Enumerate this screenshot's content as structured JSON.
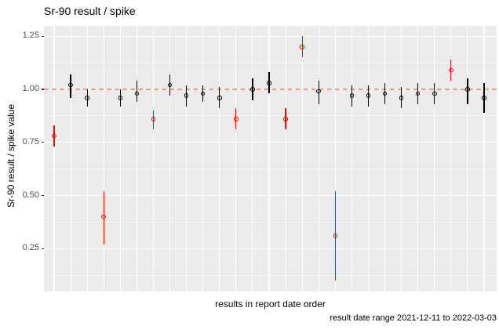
{
  "chart_data": {
    "type": "scatter",
    "subtype": "points-with-error-bars",
    "title": "Sr-90 result / spike",
    "xlabel": "results in report date order",
    "ylabel": "Sr-90 result / spike value",
    "caption": "result date range 2021-12-11 to 2022-03-03",
    "legend": "none",
    "grid": "on",
    "ylim": [
      0.05,
      1.3
    ],
    "yticks": [
      1.25,
      1.0,
      0.75,
      0.5,
      0.25
    ],
    "ytick_labels": [
      "1.25",
      "1.00",
      "0.75",
      "0.50",
      "0.25"
    ],
    "minor_gridlines_y": [
      1.125,
      0.875,
      0.625,
      0.375,
      0.125
    ],
    "reference_line": {
      "y": 1.0,
      "style": "dashed",
      "color": "#F49B7D"
    },
    "colors": {
      "panel_bg": "#EBEBEB",
      "gridline": "#FFFFFF",
      "normal": "#000000",
      "flagged": "#FF0000",
      "tick_text": "#4D4D4D",
      "refline": "#F49B7D"
    },
    "n_points": 27,
    "points": [
      {
        "index": 1,
        "y": 0.78,
        "ymin": 0.73,
        "ymax": 0.83,
        "color": "red"
      },
      {
        "index": 2,
        "y": 1.02,
        "ymin": 0.96,
        "ymax": 1.07,
        "color": "black"
      },
      {
        "index": 3,
        "y": 0.96,
        "ymin": 0.92,
        "ymax": 1.0,
        "color": "black"
      },
      {
        "index": 4,
        "y": 0.4,
        "ymin": 0.27,
        "ymax": 0.52,
        "color": "red"
      },
      {
        "index": 5,
        "y": 0.96,
        "ymin": 0.92,
        "ymax": 1.0,
        "color": "black"
      },
      {
        "index": 6,
        "y": 0.98,
        "ymin": 0.94,
        "ymax": 1.04,
        "color": "black"
      },
      {
        "index": 7,
        "y": 0.86,
        "ymin": 0.81,
        "ymax": 0.9,
        "color": "red"
      },
      {
        "index": 8,
        "y": 1.02,
        "ymin": 0.97,
        "ymax": 1.07,
        "color": "black"
      },
      {
        "index": 9,
        "y": 0.97,
        "ymin": 0.92,
        "ymax": 1.02,
        "color": "black"
      },
      {
        "index": 10,
        "y": 0.98,
        "ymin": 0.94,
        "ymax": 1.02,
        "color": "black"
      },
      {
        "index": 11,
        "y": 0.96,
        "ymin": 0.91,
        "ymax": 1.01,
        "color": "black"
      },
      {
        "index": 12,
        "y": 0.86,
        "ymin": 0.81,
        "ymax": 0.91,
        "color": "red"
      },
      {
        "index": 13,
        "y": 1.0,
        "ymin": 0.95,
        "ymax": 1.05,
        "color": "black"
      },
      {
        "index": 14,
        "y": 1.03,
        "ymin": 0.98,
        "ymax": 1.08,
        "color": "black"
      },
      {
        "index": 15,
        "y": 0.86,
        "ymin": 0.81,
        "ymax": 0.91,
        "color": "red"
      },
      {
        "index": 16,
        "y": 1.2,
        "ymin": 1.15,
        "ymax": 1.25,
        "color": "red"
      },
      {
        "index": 17,
        "y": 0.99,
        "ymin": 0.93,
        "ymax": 1.04,
        "color": "black"
      },
      {
        "index": 18,
        "y": 0.31,
        "ymin": 0.1,
        "ymax": 0.52,
        "color": "red"
      },
      {
        "index": 19,
        "y": 0.97,
        "ymin": 0.92,
        "ymax": 1.02,
        "color": "black"
      },
      {
        "index": 20,
        "y": 0.97,
        "ymin": 0.92,
        "ymax": 1.02,
        "color": "black"
      },
      {
        "index": 21,
        "y": 0.98,
        "ymin": 0.93,
        "ymax": 1.03,
        "color": "black"
      },
      {
        "index": 22,
        "y": 0.96,
        "ymin": 0.91,
        "ymax": 1.01,
        "color": "black"
      },
      {
        "index": 23,
        "y": 0.98,
        "ymin": 0.93,
        "ymax": 1.03,
        "color": "black"
      },
      {
        "index": 24,
        "y": 0.98,
        "ymin": 0.93,
        "ymax": 1.03,
        "color": "black"
      },
      {
        "index": 25,
        "y": 1.09,
        "ymin": 1.04,
        "ymax": 1.14,
        "color": "red"
      },
      {
        "index": 26,
        "y": 1.0,
        "ymin": 0.93,
        "ymax": 1.05,
        "color": "black"
      },
      {
        "index": 27,
        "y": 0.96,
        "ymin": 0.89,
        "ymax": 1.03,
        "color": "black"
      }
    ]
  }
}
